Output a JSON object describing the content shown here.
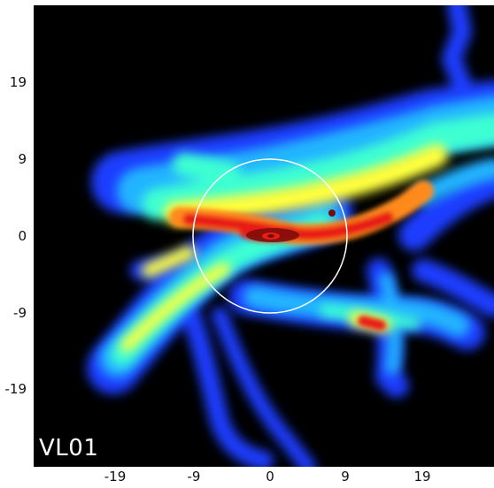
{
  "panel_label": "VL01",
  "axes": {
    "x_ticks": [
      "-19",
      "-9",
      "0",
      "9",
      "19"
    ],
    "y_ticks": [
      "19",
      "9",
      "0",
      "-9",
      "-19"
    ],
    "xlim": [
      -30,
      30
    ],
    "ylim": [
      -30,
      30
    ]
  },
  "overlay": {
    "shape": "circle",
    "center": [
      0,
      0
    ],
    "radius": 10,
    "color": "#ffffff"
  },
  "colormap": [
    "#1a3cff",
    "#24b4ff",
    "#3cffd2",
    "#ffff3c",
    "#ff8a1e",
    "#e81e12",
    "#7a0a0a"
  ]
}
